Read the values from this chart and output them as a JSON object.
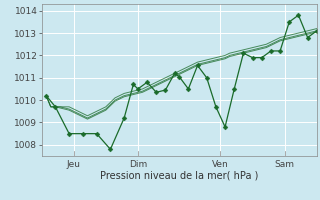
{
  "xlabel": "Pression niveau de la mer( hPa )",
  "bg_color": "#cce8f0",
  "grid_color": "#ffffff",
  "line_color": "#1a6b2a",
  "ylim": [
    1007.5,
    1014.3
  ],
  "yticks": [
    1008,
    1009,
    1010,
    1011,
    1012,
    1013,
    1014
  ],
  "xtick_labels": [
    "Jeu",
    "Dim",
    "Ven",
    "Sam"
  ],
  "xtick_positions": [
    6,
    20,
    38,
    52
  ],
  "total_points": 60,
  "series": [
    [
      1010.2,
      1009.7,
      1009.7,
      1009.7,
      1009.7,
      1009.7,
      1009.6,
      1009.5,
      1009.4,
      1009.3,
      1009.4,
      1009.5,
      1009.6,
      1009.7,
      1009.9,
      1010.1,
      1010.2,
      1010.3,
      1010.35,
      1010.4,
      1010.45,
      1010.5,
      1010.6,
      1010.7,
      1010.8,
      1010.9,
      1011.0,
      1011.1,
      1011.2,
      1011.3,
      1011.4,
      1011.5,
      1011.6,
      1011.7,
      1011.75,
      1011.8,
      1011.85,
      1011.9,
      1011.95,
      1012.0,
      1012.1,
      1012.15,
      1012.2,
      1012.25,
      1012.3,
      1012.35,
      1012.4,
      1012.45,
      1012.5,
      1012.6,
      1012.7,
      1012.8,
      1012.85,
      1012.9,
      1012.95,
      1013.0,
      1013.05,
      1013.1,
      1013.15,
      1013.2
    ],
    [
      1010.2,
      1009.7,
      1009.7,
      1009.7,
      1009.65,
      1009.6,
      1009.5,
      1009.4,
      1009.3,
      1009.2,
      1009.3,
      1009.4,
      1009.5,
      1009.6,
      1009.8,
      1010.0,
      1010.1,
      1010.2,
      1010.25,
      1010.3,
      1010.35,
      1010.4,
      1010.5,
      1010.6,
      1010.7,
      1010.8,
      1010.9,
      1011.0,
      1011.1,
      1011.2,
      1011.3,
      1011.4,
      1011.5,
      1011.6,
      1011.65,
      1011.7,
      1011.75,
      1011.8,
      1011.85,
      1011.9,
      1012.0,
      1012.05,
      1012.1,
      1012.15,
      1012.2,
      1012.25,
      1012.3,
      1012.35,
      1012.4,
      1012.5,
      1012.6,
      1012.7,
      1012.75,
      1012.8,
      1012.85,
      1012.9,
      1012.95,
      1013.0,
      1013.05,
      1013.1
    ],
    [
      1010.2,
      1009.7,
      1009.7,
      1009.65,
      1009.6,
      1009.55,
      1009.45,
      1009.35,
      1009.25,
      1009.15,
      1009.25,
      1009.35,
      1009.45,
      1009.55,
      1009.75,
      1009.95,
      1010.05,
      1010.15,
      1010.2,
      1010.25,
      1010.3,
      1010.35,
      1010.45,
      1010.55,
      1010.65,
      1010.75,
      1010.85,
      1010.95,
      1011.05,
      1011.15,
      1011.25,
      1011.35,
      1011.45,
      1011.55,
      1011.6,
      1011.65,
      1011.7,
      1011.75,
      1011.8,
      1011.85,
      1011.95,
      1012.0,
      1012.05,
      1012.1,
      1012.15,
      1012.2,
      1012.25,
      1012.3,
      1012.35,
      1012.45,
      1012.55,
      1012.65,
      1012.7,
      1012.75,
      1012.8,
      1012.85,
      1012.9,
      1012.95,
      1013.0,
      1013.05
    ]
  ],
  "main_x": [
    0,
    2,
    5,
    8,
    11,
    14,
    17,
    19,
    20,
    22,
    24,
    26,
    28,
    29,
    31,
    33,
    35,
    37,
    39,
    41,
    43,
    45,
    47,
    49,
    51,
    53,
    55,
    57,
    59
  ],
  "main_y": [
    1010.2,
    1009.7,
    1008.5,
    1008.5,
    1008.5,
    1007.8,
    1009.2,
    1010.7,
    1010.5,
    1010.8,
    1010.35,
    1010.45,
    1011.2,
    1011.05,
    1010.5,
    1011.55,
    1011.0,
    1009.7,
    1008.8,
    1010.5,
    1012.1,
    1011.9,
    1011.9,
    1012.2,
    1012.2,
    1013.5,
    1013.8,
    1012.8,
    1013.1
  ]
}
